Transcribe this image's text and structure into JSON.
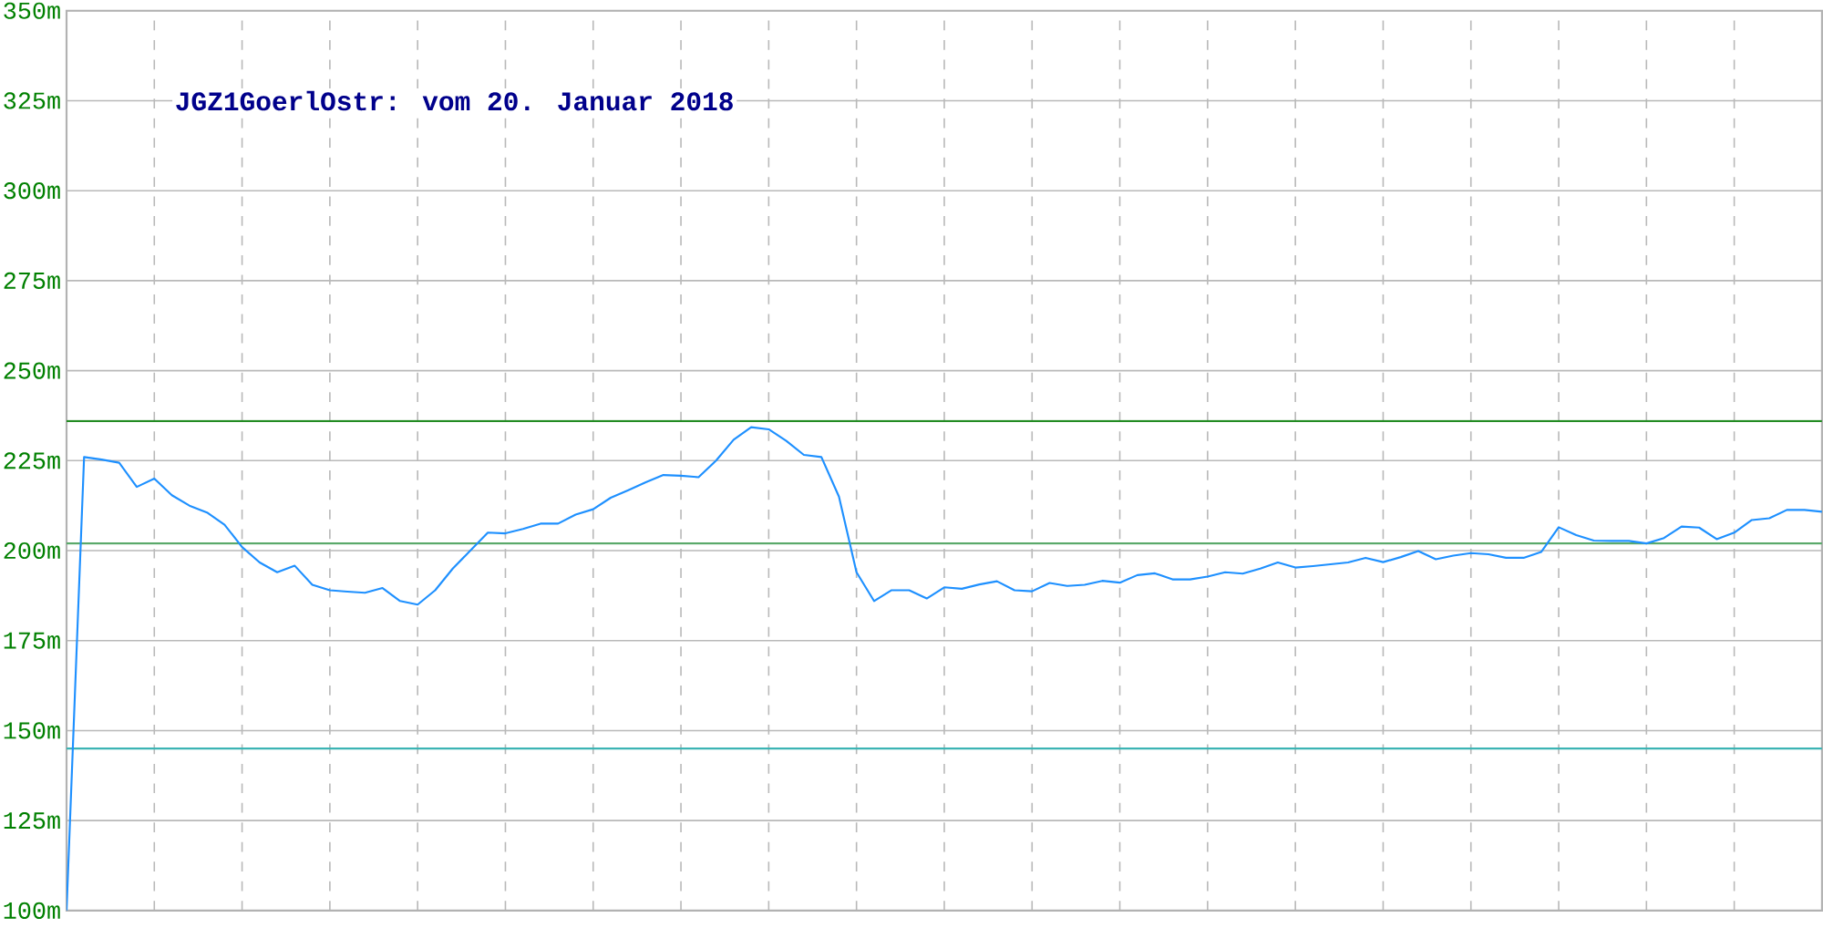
{
  "chart_data": {
    "type": "line",
    "title": "JGZ1GoerlOstr: vom 20. Januar 2018",
    "categories": [
      null,
      null,
      null,
      null,
      null,
      null,
      null,
      null,
      null,
      null,
      null,
      null,
      null,
      null,
      null,
      null,
      null,
      null,
      null,
      null,
      null,
      null,
      null,
      null,
      null,
      null,
      null,
      null,
      null,
      null,
      null,
      null,
      null,
      null,
      null,
      null,
      null,
      null,
      null,
      null,
      null,
      null,
      null,
      null,
      null,
      null,
      null,
      null,
      null,
      null,
      null,
      null,
      null,
      null,
      null,
      null,
      null,
      null,
      null,
      null,
      null,
      null,
      null,
      null,
      null,
      null,
      null,
      null,
      null,
      null,
      null,
      null,
      null,
      null,
      null,
      null,
      null,
      null,
      null,
      null,
      null,
      null,
      null,
      null,
      null,
      null,
      null,
      null,
      null,
      null,
      null,
      null,
      null,
      null,
      null,
      null,
      null,
      null,
      null,
      null,
      null
    ],
    "ylim": [
      100,
      350
    ],
    "yticks": [
      {
        "value": 100,
        "label": "100m"
      },
      {
        "value": 125,
        "label": "125m"
      },
      {
        "value": 150,
        "label": "150m"
      },
      {
        "value": 175,
        "label": "175m"
      },
      {
        "value": 200,
        "label": "200m"
      },
      {
        "value": 225,
        "label": "225m"
      },
      {
        "value": 250,
        "label": "250m"
      },
      {
        "value": 275,
        "label": "275m"
      },
      {
        "value": 300,
        "label": "300m"
      },
      {
        "value": 325,
        "label": "325m"
      },
      {
        "value": 350,
        "label": "350m"
      }
    ],
    "grid": true,
    "marker": "none",
    "line_style": "solid",
    "ref_lines": [
      {
        "axis": "y",
        "value": 236,
        "color": "#228b22"
      },
      {
        "axis": "y",
        "value": 202,
        "color": "#5aa96a"
      },
      {
        "axis": "y",
        "value": 145,
        "color": "#3cb4b4"
      }
    ],
    "series": [
      {
        "color": "#1e90ff",
        "values": [
          100,
          226,
          225.3,
          224.4,
          217.7,
          220,
          215.4,
          212.5,
          210.6,
          207.2,
          201,
          196.7,
          194,
          195.8,
          190.5,
          189,
          188.6,
          188.3,
          189.6,
          186,
          185,
          189,
          195,
          200,
          205,
          204.8,
          206,
          207.5,
          207.5,
          210,
          211.5,
          214.7,
          216.8,
          219,
          221,
          220.8,
          220.4,
          225,
          230.8,
          234.3,
          233.7,
          230.5,
          226.6,
          226,
          215,
          194,
          186,
          189,
          189,
          186.7,
          189.8,
          189.4,
          190.6,
          191.5,
          189,
          188.7,
          191,
          190.2,
          190.5,
          191.6,
          191.1,
          193.2,
          193.7,
          192,
          192,
          192.8,
          194,
          193.6,
          195,
          196.7,
          195.3,
          195.7,
          196.2,
          196.7,
          198,
          196.8,
          198.2,
          199.9,
          197.6,
          198.6,
          199.3,
          199,
          198,
          198,
          199.6,
          206.5,
          204.3,
          202.8,
          202.7,
          202.7,
          202,
          203.5,
          206.7,
          206.4,
          203.2,
          205,
          208.5,
          209,
          211.3,
          211.3,
          210.8
        ]
      }
    ]
  }
}
